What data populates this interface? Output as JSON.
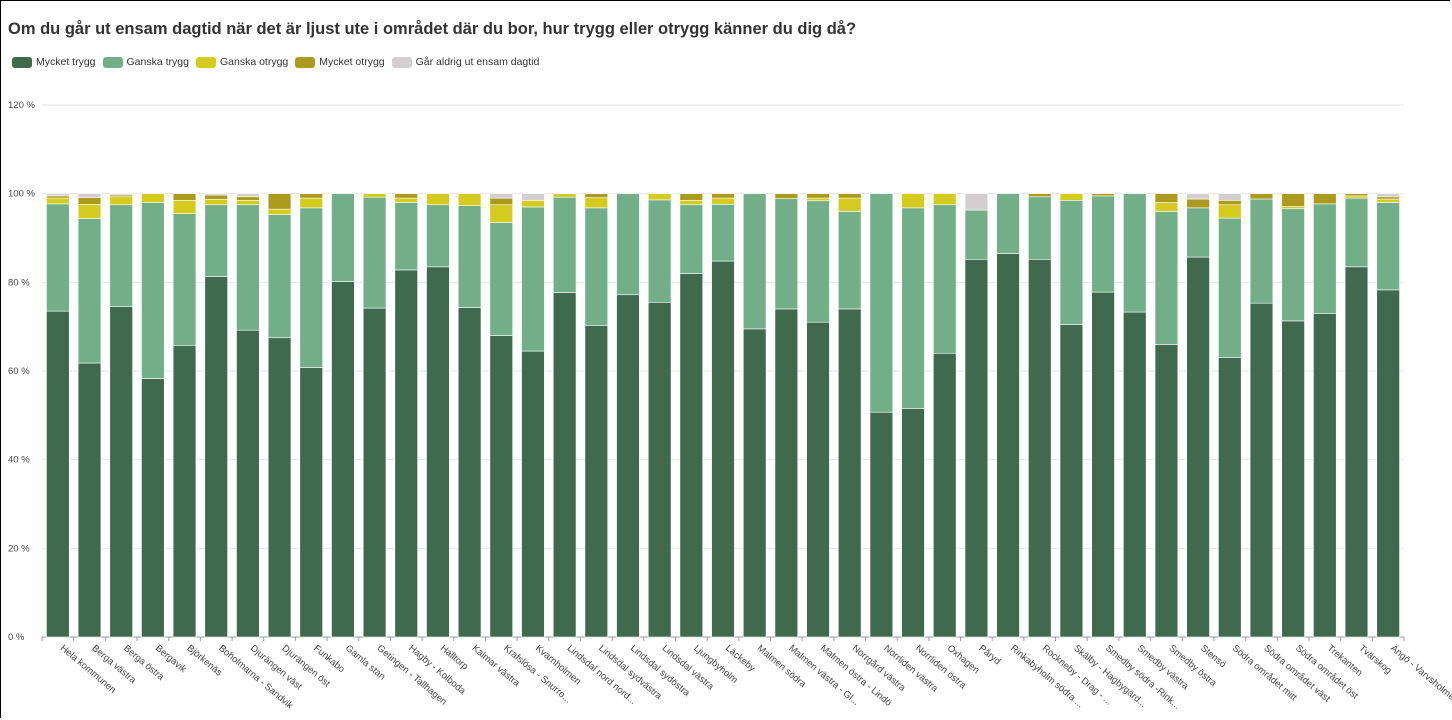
{
  "title": "Om du går ut ensam dagtid när det är ljust ute i området där du bor, hur trygg eller otrygg känner du dig då?",
  "legend": [
    {
      "label": "Mycket trygg",
      "color": "#3f6a4e"
    },
    {
      "label": "Ganska trygg",
      "color": "#72ae88"
    },
    {
      "label": "Ganska otrygg",
      "color": "#d4cb1e"
    },
    {
      "label": "Mycket otrygg",
      "color": "#ab9a1e"
    },
    {
      "label": "Går aldrig ut ensam dagtid",
      "color": "#d3cfd0"
    }
  ],
  "chart_data": {
    "type": "bar",
    "stacked": true,
    "title": "Om du går ut ensam dagtid när det är ljust ute i området där du bor, hur trygg eller otrygg känner du dig då?",
    "xlabel": "",
    "ylabel": "",
    "ylim": [
      0,
      120
    ],
    "yticks": [
      "0 %",
      "20 %",
      "40 %",
      "60 %",
      "80 %",
      "100 %",
      "120 %"
    ],
    "grid": true,
    "legend_position": "top-left",
    "categories": [
      "Hela kommunen",
      "Berga västra",
      "Berga östra",
      "Bergavik",
      "Björkenäs",
      "Boholmarna - Sandvik",
      "Djurängen väst",
      "Djurängen öst",
      "Funkabo",
      "Gamla stan",
      "Getingen - Tallhagen",
      "Hagby - Kolboda",
      "Halltorp",
      "Kalmar västra",
      "Krafslösa - Snurro...",
      "Kvarnholmen",
      "Lindsdal nord nord...",
      "Lindsdal sydvästra",
      "Lindsdal sydöstra",
      "Lindsdal västra",
      "Ljungbyholm",
      "Läckeby",
      "Malmen södra",
      "Malmen västra - Gl...",
      "Malmen östra - Lindö",
      "Norrgård västra",
      "Norrliden västra",
      "Norrliden östra",
      "Oxhagen",
      "Påryd",
      "Rinkabyholm södra ...",
      "Rockneby - Drag - ...",
      "Skälby - Hagbygärd...",
      "Smedby södra -Rink...",
      "Smedby västra",
      "Smedby östra",
      "Stensö",
      "Södra området mitt",
      "Södra området väst",
      "Södra området öst",
      "Trekanten",
      "Tvärskog",
      "Ängö - Varvsholmen"
    ],
    "series": [
      {
        "name": "Mycket trygg",
        "values": [
          73.5,
          61.8,
          74.5,
          58.3,
          65.8,
          81.3,
          69.2,
          67.5,
          60.8,
          80.2,
          74.2,
          82.8,
          83.5,
          74.3,
          68.0,
          64.5,
          77.7,
          70.3,
          77.2,
          75.5,
          82.0,
          84.8,
          69.5,
          74.0,
          71.0,
          74.0,
          50.7,
          51.5,
          64.0,
          85.2,
          86.5,
          85.2,
          70.5,
          77.8,
          73.3,
          66.0,
          85.7,
          63.0,
          75.3,
          71.3,
          73.0,
          83.5,
          78.3
        ]
      },
      {
        "name": "Ganska trygg",
        "values": [
          24.2,
          32.6,
          23.0,
          39.7,
          29.7,
          16.2,
          28.3,
          27.8,
          36.0,
          19.8,
          25.0,
          15.2,
          14.0,
          23.0,
          25.5,
          32.5,
          21.5,
          26.5,
          22.8,
          23.1,
          15.5,
          12.8,
          30.5,
          24.9,
          27.4,
          22.0,
          49.3,
          45.3,
          33.5,
          11.1,
          13.5,
          14.1,
          28.0,
          21.7,
          26.7,
          30.0,
          11.1,
          31.5,
          23.5,
          25.3,
          24.7,
          15.5,
          19.7
        ]
      },
      {
        "name": "Ganska otrygg",
        "values": [
          1.3,
          3.2,
          1.8,
          2.0,
          3.0,
          1.2,
          1.0,
          1.2,
          2.2,
          0,
          0.8,
          1.0,
          2.5,
          2.7,
          4.0,
          1.5,
          0.8,
          2.3,
          0,
          1.4,
          1.0,
          1.4,
          0,
          0,
          0.6,
          3.0,
          0,
          3.2,
          2.5,
          0,
          0,
          0,
          1.5,
          0,
          0,
          2.0,
          0,
          3.0,
          0,
          0.5,
          0,
          0.5,
          0.8
        ]
      },
      {
        "name": "Mycket otrygg",
        "values": [
          0.5,
          1.5,
          0.4,
          0,
          1.5,
          1.0,
          0.8,
          3.5,
          1.0,
          0,
          0,
          1.0,
          0,
          0,
          1.5,
          0,
          0,
          0.9,
          0,
          0,
          1.5,
          1.0,
          0,
          1.1,
          1.0,
          1.0,
          0,
          0,
          0,
          0,
          0,
          0.7,
          0,
          0.5,
          0,
          2.0,
          2.0,
          1.0,
          1.2,
          2.9,
          2.3,
          0.5,
          0.5
        ]
      },
      {
        "name": "Går aldrig ut ensam dagtid",
        "values": [
          0.5,
          0.9,
          0.3,
          0,
          0,
          0.3,
          0.7,
          0,
          0,
          0,
          0,
          0,
          0,
          0,
          1.0,
          1.5,
          0,
          0,
          0,
          0,
          0,
          0,
          0,
          0,
          0,
          0,
          0,
          0,
          0,
          3.7,
          0,
          0,
          0,
          0,
          0,
          0,
          1.2,
          1.5,
          0,
          0,
          0,
          0,
          0.7
        ]
      }
    ]
  }
}
